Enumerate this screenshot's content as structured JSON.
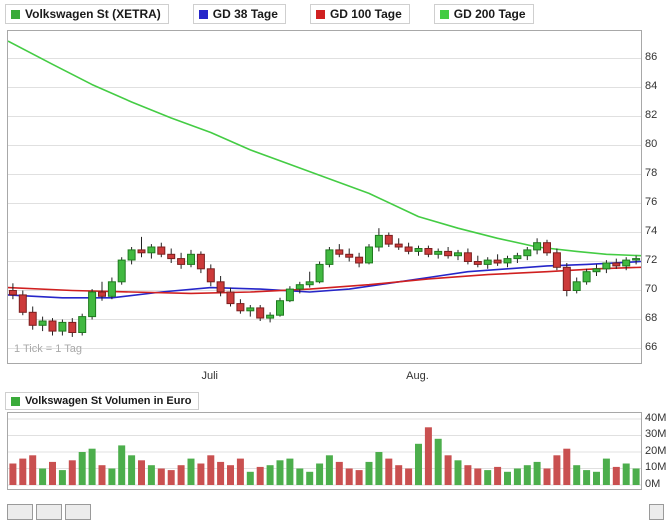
{
  "legend": {
    "items": [
      {
        "label": "Volkswagen St (XETRA)",
        "color": "#3aaa3a"
      },
      {
        "label": "GD 38 Tage",
        "color": "#2626c9"
      },
      {
        "label": "GD 100 Tage",
        "color": "#d02020"
      },
      {
        "label": "GD 200 Tage",
        "color": "#44cc44"
      }
    ]
  },
  "chart_data": [
    {
      "type": "candlestick",
      "title": "Volkswagen St (XETRA)",
      "note": "1 Tick = 1 Tag",
      "ylim": [
        65.0,
        87.9
      ],
      "y_ticks": [
        86,
        84,
        82,
        80,
        78,
        76,
        74,
        72,
        70,
        68,
        66
      ],
      "x_tick_labels": [
        {
          "label": "Juli",
          "index": 20
        },
        {
          "label": "Aug.",
          "index": 41
        }
      ],
      "colors": {
        "up_fill": "#41b941",
        "up_stroke": "#1f7a1f",
        "down_fill": "#cc3a3a",
        "down_stroke": "#7a1f1f",
        "wick": "#222222",
        "grid": "#e0e0e0"
      },
      "ohlc": [
        [
          70.0,
          70.5,
          69.4,
          69.7
        ],
        [
          69.7,
          70.0,
          68.3,
          68.5
        ],
        [
          68.5,
          68.9,
          67.3,
          67.6
        ],
        [
          67.6,
          68.2,
          67.2,
          67.9
        ],
        [
          67.9,
          68.1,
          66.9,
          67.2
        ],
        [
          67.2,
          68.0,
          66.9,
          67.8
        ],
        [
          67.8,
          68.1,
          66.8,
          67.1
        ],
        [
          67.1,
          68.4,
          66.9,
          68.2
        ],
        [
          68.2,
          70.1,
          68.0,
          69.9
        ],
        [
          69.9,
          70.6,
          69.3,
          69.6
        ],
        [
          69.6,
          70.9,
          69.4,
          70.6
        ],
        [
          70.6,
          72.3,
          70.4,
          72.1
        ],
        [
          72.1,
          73.0,
          71.8,
          72.8
        ],
        [
          72.8,
          73.7,
          72.3,
          72.6
        ],
        [
          72.6,
          73.2,
          72.2,
          73.0
        ],
        [
          73.0,
          73.3,
          72.3,
          72.5
        ],
        [
          72.5,
          72.9,
          71.9,
          72.2
        ],
        [
          72.2,
          72.6,
          71.5,
          71.8
        ],
        [
          71.8,
          72.8,
          71.6,
          72.5
        ],
        [
          72.5,
          72.7,
          71.2,
          71.5
        ],
        [
          71.5,
          71.8,
          70.3,
          70.6
        ],
        [
          70.6,
          71.0,
          69.6,
          69.9
        ],
        [
          69.9,
          70.2,
          68.9,
          69.1
        ],
        [
          69.1,
          69.4,
          68.4,
          68.6
        ],
        [
          68.6,
          69.0,
          68.2,
          68.8
        ],
        [
          68.8,
          69.0,
          67.9,
          68.1
        ],
        [
          68.1,
          68.5,
          67.8,
          68.3
        ],
        [
          68.3,
          69.5,
          68.2,
          69.3
        ],
        [
          69.3,
          70.3,
          69.2,
          70.1
        ],
        [
          70.1,
          70.6,
          69.8,
          70.4
        ],
        [
          70.4,
          71.3,
          70.2,
          70.6
        ],
        [
          70.6,
          72.0,
          70.5,
          71.8
        ],
        [
          71.8,
          73.0,
          71.6,
          72.8
        ],
        [
          72.8,
          73.2,
          72.3,
          72.5
        ],
        [
          72.5,
          72.9,
          72.0,
          72.3
        ],
        [
          72.3,
          72.6,
          71.6,
          71.9
        ],
        [
          71.9,
          73.2,
          71.8,
          73.0
        ],
        [
          73.0,
          74.3,
          72.7,
          73.8
        ],
        [
          73.8,
          74.0,
          73.0,
          73.2
        ],
        [
          73.2,
          73.6,
          72.8,
          73.0
        ],
        [
          73.0,
          73.3,
          72.5,
          72.7
        ],
        [
          72.7,
          73.1,
          72.4,
          72.9
        ],
        [
          72.9,
          73.1,
          72.3,
          72.5
        ],
        [
          72.5,
          72.9,
          72.2,
          72.7
        ],
        [
          72.7,
          73.0,
          72.2,
          72.4
        ],
        [
          72.4,
          72.8,
          72.1,
          72.6
        ],
        [
          72.6,
          72.9,
          71.8,
          72.0
        ],
        [
          72.0,
          72.4,
          71.6,
          71.8
        ],
        [
          71.8,
          72.3,
          71.5,
          72.1
        ],
        [
          72.1,
          72.5,
          71.7,
          71.9
        ],
        [
          71.9,
          72.4,
          71.6,
          72.2
        ],
        [
          72.2,
          72.6,
          71.9,
          72.4
        ],
        [
          72.4,
          73.0,
          72.1,
          72.8
        ],
        [
          72.8,
          73.6,
          72.5,
          73.3
        ],
        [
          73.3,
          73.5,
          72.4,
          72.6
        ],
        [
          72.6,
          72.9,
          71.4,
          71.6
        ],
        [
          71.6,
          71.9,
          69.6,
          70.0
        ],
        [
          70.0,
          70.9,
          69.8,
          70.6
        ],
        [
          70.6,
          71.5,
          70.4,
          71.3
        ],
        [
          71.3,
          71.8,
          71.0,
          71.5
        ],
        [
          71.5,
          72.1,
          71.2,
          71.9
        ],
        [
          71.9,
          72.2,
          71.5,
          71.7
        ],
        [
          71.7,
          72.3,
          71.4,
          72.1
        ],
        [
          72.1,
          72.4,
          71.8,
          72.2
        ]
      ],
      "moving_averages": [
        {
          "name": "GD 38 Tage",
          "color": "#2626c9",
          "points": [
            [
              0,
              69.7
            ],
            [
              5,
              69.5
            ],
            [
              10,
              69.5
            ],
            [
              15,
              69.9
            ],
            [
              20,
              70.2
            ],
            [
              25,
              70.1
            ],
            [
              30,
              69.9
            ],
            [
              34,
              70.1
            ],
            [
              38,
              70.5
            ],
            [
              42,
              70.9
            ],
            [
              46,
              71.3
            ],
            [
              50,
              71.5
            ],
            [
              54,
              71.7
            ],
            [
              58,
              71.8
            ],
            [
              63,
              72.0
            ]
          ]
        },
        {
          "name": "GD 100 Tage",
          "color": "#d02020",
          "points": [
            [
              0,
              70.2
            ],
            [
              6,
              70.0
            ],
            [
              12,
              69.9
            ],
            [
              18,
              69.8
            ],
            [
              24,
              69.9
            ],
            [
              30,
              70.1
            ],
            [
              36,
              70.4
            ],
            [
              42,
              70.8
            ],
            [
              48,
              71.1
            ],
            [
              54,
              71.3
            ],
            [
              59,
              71.5
            ],
            [
              63,
              71.6
            ]
          ]
        },
        {
          "name": "GD 200 Tage",
          "color": "#44cc44",
          "points": [
            [
              0,
              87.2
            ],
            [
              4,
              85.6
            ],
            [
              8,
              84.2
            ],
            [
              12,
              83.0
            ],
            [
              16,
              81.9
            ],
            [
              20,
              80.9
            ],
            [
              24,
              79.7
            ],
            [
              28,
              78.7
            ],
            [
              32,
              77.7
            ],
            [
              36,
              76.7
            ],
            [
              41,
              75.1
            ],
            [
              45,
              74.3
            ],
            [
              49,
              73.6
            ],
            [
              53,
              73.0
            ],
            [
              57,
              72.7
            ],
            [
              60,
              72.5
            ],
            [
              63,
              72.4
            ]
          ]
        }
      ]
    },
    {
      "type": "bar",
      "title": "Volkswagen St Volumen in Euro",
      "color": "#3aaa3a",
      "unit": "M",
      "ylim": [
        0,
        40
      ],
      "y_ticks": [
        "40M",
        "30M",
        "20M",
        "10M",
        "0M"
      ],
      "colors": {
        "up": "#4cae4c",
        "down": "#c95050",
        "grid": "#e0e0e0"
      },
      "values": [
        13,
        16,
        18,
        10,
        14,
        9,
        15,
        20,
        22,
        12,
        10,
        24,
        18,
        15,
        12,
        10,
        9,
        12,
        16,
        13,
        18,
        14,
        12,
        16,
        8,
        11,
        12,
        15,
        16,
        10,
        8,
        13,
        18,
        14,
        10,
        9,
        14,
        20,
        16,
        12,
        10,
        25,
        35,
        28,
        18,
        15,
        12,
        10,
        9,
        11,
        8,
        10,
        12,
        14,
        10,
        18,
        22,
        12,
        9,
        8,
        16,
        11,
        13,
        10
      ]
    }
  ]
}
